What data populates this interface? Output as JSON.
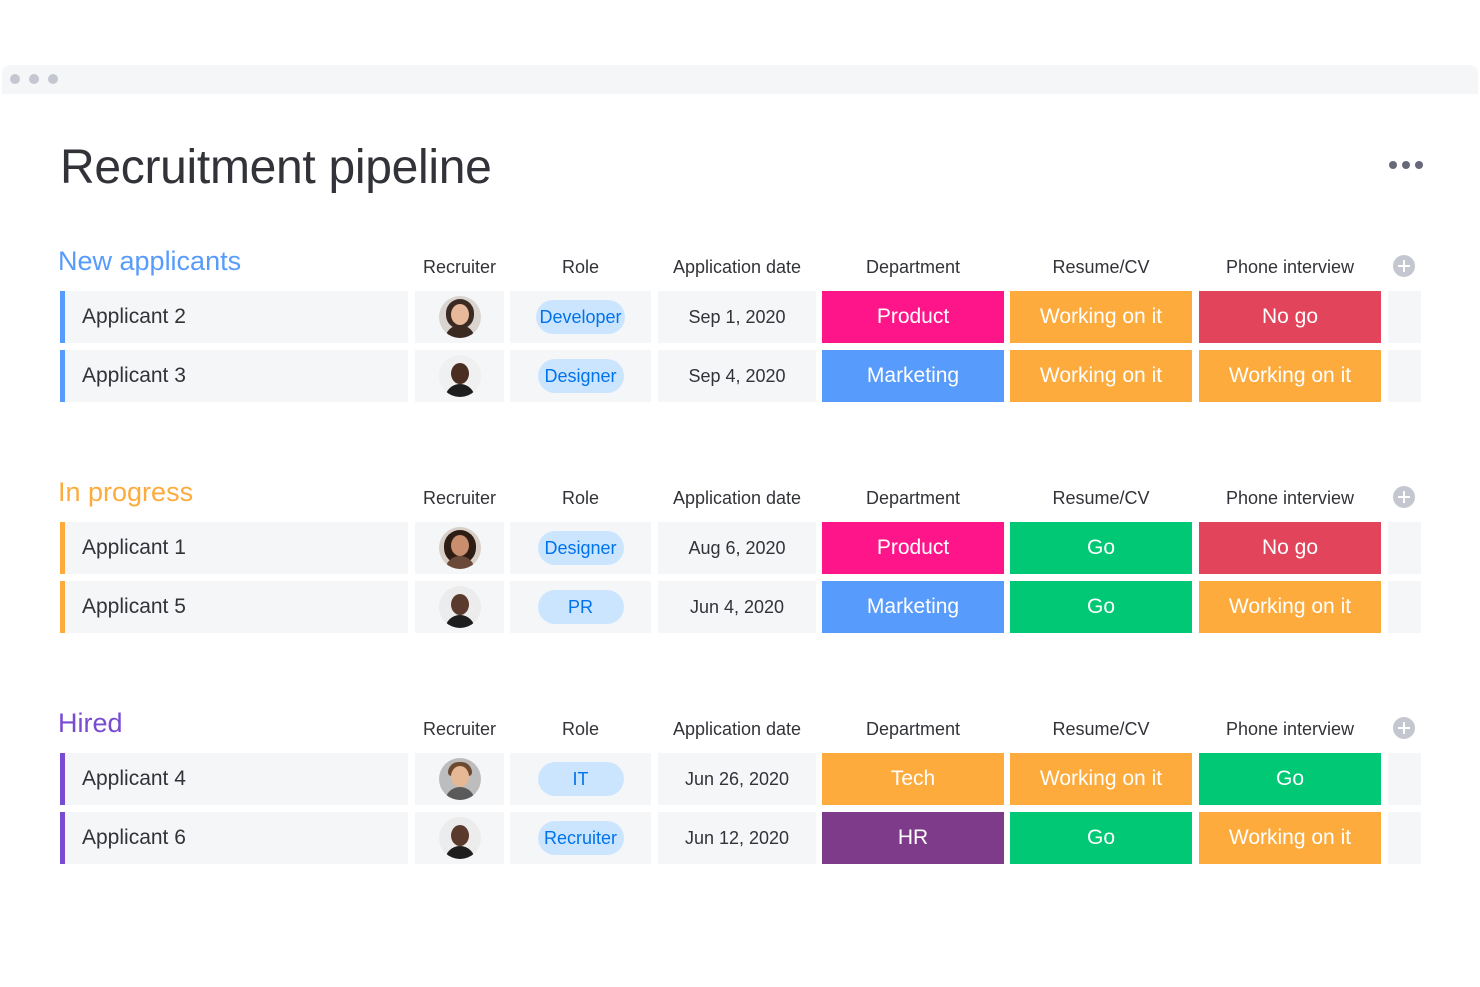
{
  "page": {
    "title": "Recruitment pipeline"
  },
  "columns": {
    "recruiter": "Recruiter",
    "role": "Role",
    "application_date": "Application date",
    "department": "Department",
    "resume": "Resume/CV",
    "phone_interview": "Phone interview"
  },
  "colors": {
    "product": "#ff158a",
    "marketing": "#579bfc",
    "tech": "#fdab3d",
    "hr": "#7e3b8a",
    "working_on_it": "#fdab3d",
    "no_go": "#e2445c",
    "go": "#00c875",
    "group_new": "#579bfc",
    "group_progress": "#fdab3d",
    "group_hired": "#784bd1",
    "role_pill_bg": "#cce5ff",
    "role_pill_text": "#0073ea"
  },
  "groups": [
    {
      "title": "New applicants",
      "color": "#579bfc",
      "rows": [
        {
          "name": "Applicant 2",
          "role": "Developer",
          "date": "Sep 1, 2020",
          "department": "Product",
          "resume": "Working on it",
          "phone": "No go"
        },
        {
          "name": "Applicant 3",
          "role": "Designer",
          "date": "Sep 4, 2020",
          "department": "Marketing",
          "resume": "Working on it",
          "phone": "Working on it"
        }
      ]
    },
    {
      "title": "In progress",
      "color": "#fdab3d",
      "rows": [
        {
          "name": "Applicant 1",
          "role": "Designer",
          "date": "Aug 6, 2020",
          "department": "Product",
          "resume": "Go",
          "phone": "No go"
        },
        {
          "name": "Applicant 5",
          "role": "PR",
          "date": "Jun 4, 2020",
          "department": "Marketing",
          "resume": "Go",
          "phone": "Working on it"
        }
      ]
    },
    {
      "title": "Hired",
      "color": "#784bd1",
      "rows": [
        {
          "name": "Applicant 4",
          "role": "IT",
          "date": "Jun 26, 2020",
          "department": "Tech",
          "resume": "Working on it",
          "phone": "Go"
        },
        {
          "name": "Applicant 6",
          "role": "Recruiter",
          "date": "Jun 12, 2020",
          "department": "HR",
          "resume": "Go",
          "phone": "Working on it"
        }
      ]
    }
  ]
}
